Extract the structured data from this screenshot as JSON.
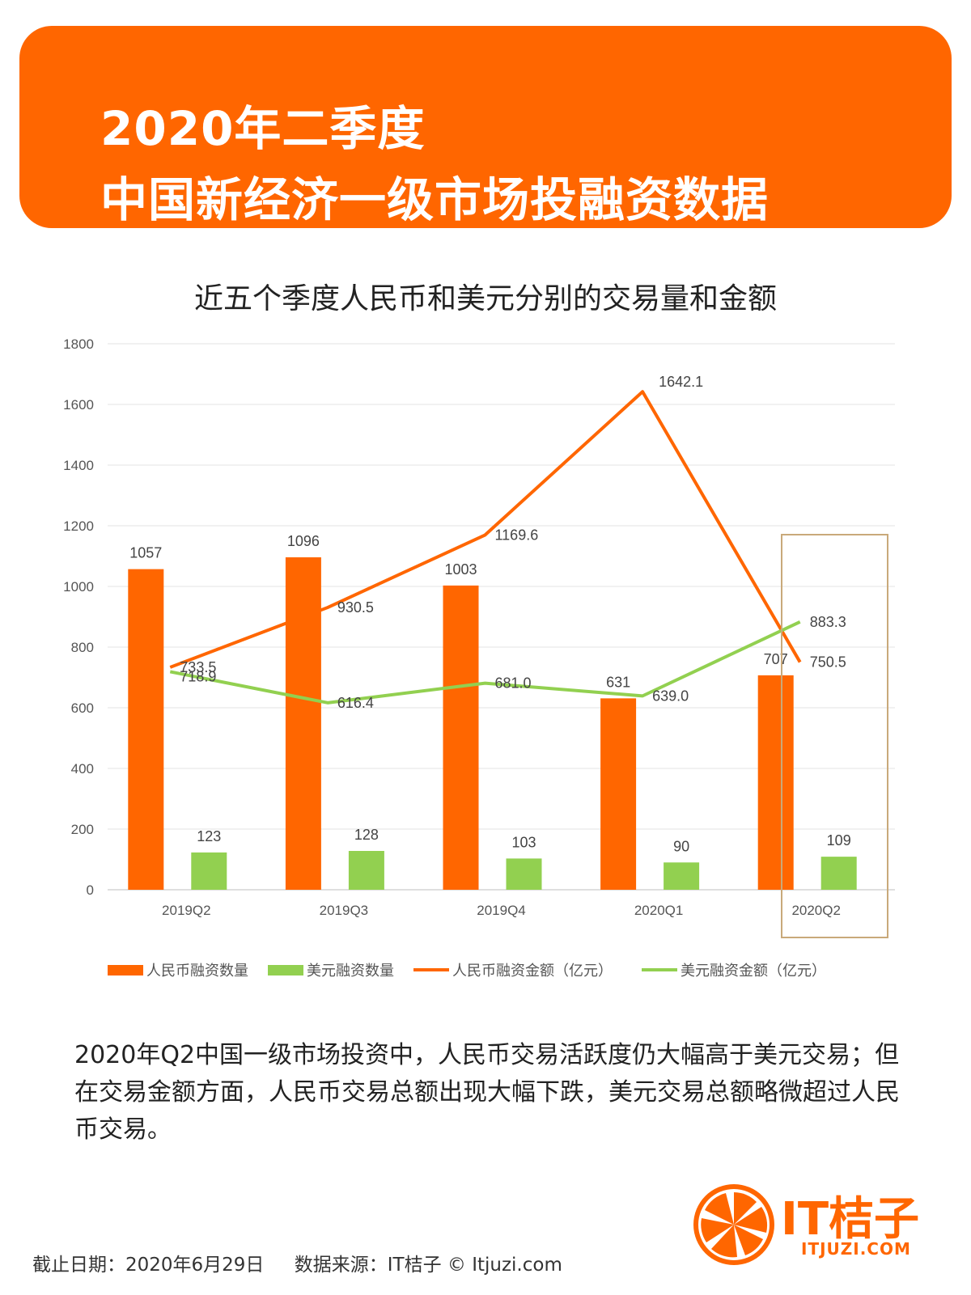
{
  "header": {
    "title_line1": "2020年二季度",
    "title_line2": "中国新经济一级市场投融资数据"
  },
  "colors": {
    "banner": "#FF6600",
    "rmb": "#FF6600",
    "usd": "#92D050",
    "highlight_box": "#C9A97A"
  },
  "chart_data": {
    "type": "bar",
    "title": "近五个季度人民币和美元分别的交易量和金额",
    "categories": [
      "2019Q2",
      "2019Q3",
      "2019Q4",
      "2020Q1",
      "2020Q2"
    ],
    "ylim": [
      0,
      1800
    ],
    "yticks": [
      0,
      200,
      400,
      600,
      800,
      1000,
      1200,
      1400,
      1600,
      1800
    ],
    "grid": true,
    "legend_position": "bottom",
    "highlighted_category": "2020Q2",
    "series": [
      {
        "name": "人民币融资数量",
        "type": "bar",
        "values": [
          1057,
          1096,
          1003,
          631,
          707
        ],
        "labels": [
          "1057",
          "1096",
          "1003",
          "631",
          "707"
        ]
      },
      {
        "name": "美元融资数量",
        "type": "bar",
        "values": [
          123,
          128,
          103,
          90,
          109
        ],
        "labels": [
          "123",
          "128",
          "103",
          "90",
          "109"
        ]
      },
      {
        "name": "人民币融资金额（亿元）",
        "type": "line",
        "values": [
          733.5,
          930.5,
          1169.6,
          1642.1,
          750.5
        ],
        "labels": [
          "733.5",
          "930.5",
          "1169.6",
          "1642.1",
          "750.5"
        ]
      },
      {
        "name": "美元融资金额（亿元）",
        "type": "line",
        "values": [
          718.9,
          616.4,
          681.0,
          639.0,
          883.3
        ],
        "labels": [
          "718.9",
          "616.4",
          "681.0",
          "639.0",
          "883.3"
        ]
      }
    ]
  },
  "summary": "2020年Q2中国一级市场投资中，人民币交易活跃度仍大幅高于美元交易；但在交易金额方面，人民币交易总额出现大幅下跌，美元交易总额略微超过人民币交易。",
  "footer": {
    "date": "截止日期：2020年6月29日",
    "source": "数据来源：IT桔子 © Itjuzi.com"
  },
  "logo": {
    "name": "IT桔子",
    "domain": "ITJUZI.COM",
    "icon": "orange-slice-icon"
  }
}
